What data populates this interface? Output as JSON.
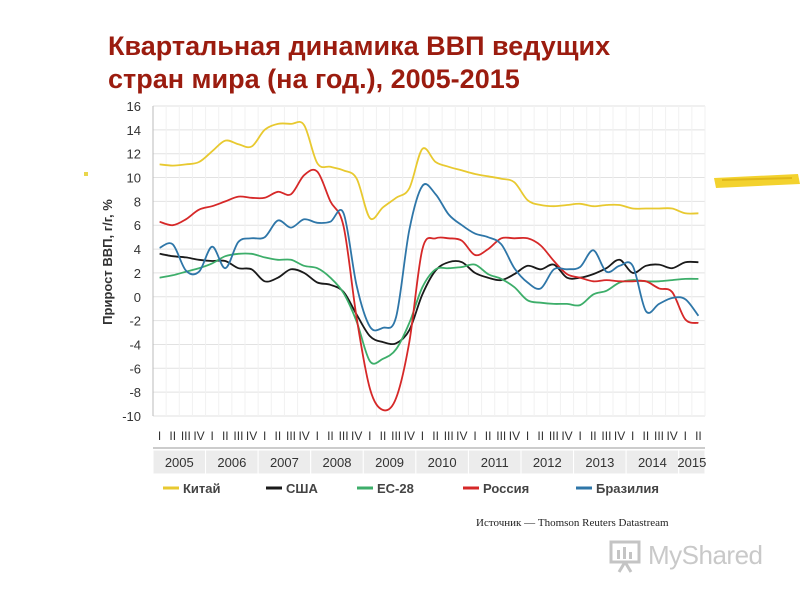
{
  "title_line1": "Квартальная динамика ВВП ведущих",
  "title_line2": "стран мира (на год.), 2005-2015",
  "source": "Источник — Thomson Reuters Datastream",
  "logo_text": "MyShared",
  "colors": {
    "title": "#9b1c0f",
    "china": "#e8c930",
    "usa": "#1a1a1a",
    "eu": "#3dae6a",
    "russia": "#d62828",
    "brazil": "#2e76a8",
    "highlight": "#f3d22e"
  },
  "chart_data": {
    "type": "line",
    "title": "",
    "xlabel": "",
    "ylabel": "Прирост ВВП, г/г, %",
    "ylim": [
      -10,
      16
    ],
    "yticks": [
      -10,
      -8,
      -6,
      -4,
      -2,
      0,
      2,
      4,
      6,
      8,
      10,
      12,
      14,
      16
    ],
    "quarter_labels": [
      "I",
      "II",
      "III",
      "IV",
      "I",
      "II",
      "III",
      "IV",
      "I",
      "II",
      "III",
      "IV",
      "I",
      "II",
      "III",
      "IV",
      "I",
      "II",
      "III",
      "IV",
      "I",
      "II",
      "III",
      "IV",
      "I",
      "II",
      "III",
      "IV",
      "I",
      "II",
      "III",
      "IV",
      "I",
      "II",
      "III",
      "IV",
      "I",
      "II",
      "III",
      "IV",
      "I",
      "II"
    ],
    "years": [
      "2005",
      "2006",
      "2007",
      "2008",
      "2009",
      "2010",
      "2011",
      "2012",
      "2013",
      "2014",
      "2015"
    ],
    "series": [
      {
        "name": "Китай",
        "color": "#e8c930",
        "values": [
          11.1,
          11.0,
          11.1,
          11.3,
          12.2,
          13.1,
          12.8,
          12.6,
          14.0,
          14.5,
          14.5,
          14.4,
          11.2,
          10.9,
          10.6,
          9.9,
          6.6,
          7.5,
          8.3,
          9.1,
          12.4,
          11.3,
          10.9,
          10.6,
          10.3,
          10.1,
          9.9,
          9.6,
          8.1,
          7.7,
          7.6,
          7.7,
          7.8,
          7.6,
          7.7,
          7.7,
          7.4,
          7.4,
          7.4,
          7.4,
          7.0,
          7.0
        ]
      },
      {
        "name": "США",
        "color": "#1a1a1a",
        "values": [
          3.6,
          3.4,
          3.3,
          3.1,
          3.0,
          3.0,
          2.4,
          2.3,
          1.3,
          1.6,
          2.3,
          2.0,
          1.2,
          1.0,
          0.4,
          -1.5,
          -3.3,
          -3.8,
          -3.9,
          -2.8,
          0.2,
          2.2,
          2.9,
          2.9,
          2.0,
          1.6,
          1.4,
          1.9,
          2.6,
          2.3,
          2.7,
          1.6,
          1.6,
          1.9,
          2.4,
          3.1,
          2.0,
          2.6,
          2.7,
          2.4,
          2.9,
          2.9
        ]
      },
      {
        "name": "ЕС-28",
        "color": "#3dae6a",
        "values": [
          1.6,
          1.8,
          2.1,
          2.4,
          2.8,
          3.4,
          3.6,
          3.6,
          3.3,
          3.1,
          3.1,
          2.6,
          2.4,
          1.6,
          0.3,
          -2.1,
          -5.4,
          -5.2,
          -4.4,
          -2.2,
          0.8,
          2.3,
          2.4,
          2.5,
          2.7,
          1.9,
          1.5,
          0.8,
          -0.3,
          -0.5,
          -0.6,
          -0.6,
          -0.7,
          0.2,
          0.5,
          1.2,
          1.4,
          1.3,
          1.3,
          1.4,
          1.5,
          1.5
        ]
      },
      {
        "name": "Россия",
        "color": "#d62828",
        "values": [
          6.3,
          6.0,
          6.5,
          7.3,
          7.6,
          8.0,
          8.4,
          8.3,
          8.3,
          8.8,
          8.6,
          10.2,
          10.5,
          8.0,
          5.9,
          -1.8,
          -7.7,
          -9.5,
          -8.5,
          -3.8,
          4.0,
          4.9,
          4.9,
          4.7,
          3.5,
          4.0,
          4.9,
          4.9,
          4.9,
          4.3,
          3.0,
          1.9,
          1.6,
          1.3,
          1.4,
          1.3,
          1.3,
          1.3,
          0.7,
          0.4,
          -1.9,
          -2.2
        ]
      },
      {
        "name": "Бразилия",
        "color": "#2e76a8",
        "values": [
          4.1,
          4.4,
          2.2,
          2.1,
          4.2,
          2.4,
          4.6,
          4.9,
          5.0,
          6.4,
          5.8,
          6.5,
          6.2,
          6.3,
          7.0,
          0.9,
          -2.5,
          -2.6,
          -1.7,
          5.6,
          9.3,
          8.6,
          6.9,
          6.0,
          5.3,
          5.0,
          4.4,
          2.4,
          1.2,
          0.7,
          2.3,
          2.3,
          2.5,
          3.9,
          2.1,
          2.6,
          2.6,
          -1.2,
          -0.6,
          -0.1,
          -0.2,
          -1.6
        ]
      }
    ],
    "grid": true,
    "legend_position": "bottom"
  }
}
